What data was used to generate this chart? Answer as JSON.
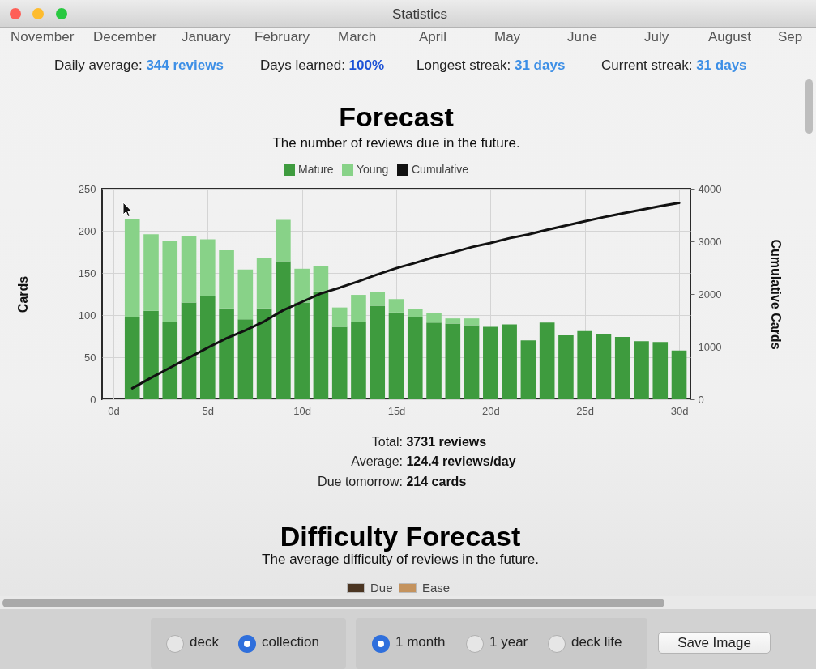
{
  "chart_data": {
    "type": "bar",
    "title": "Forecast",
    "subtitle": "The number of reviews due in the future.",
    "ylabel": "Cards",
    "y2label": "Cumulative Cards",
    "x": [
      1,
      2,
      3,
      4,
      5,
      6,
      7,
      8,
      9,
      10,
      11,
      12,
      13,
      14,
      15,
      16,
      17,
      18,
      19,
      20,
      21,
      22,
      23,
      24,
      25,
      26,
      27,
      28,
      29,
      30
    ],
    "series": [
      {
        "name": "Mature",
        "color": "#3e9b3e",
        "values": [
          98,
          105,
          92,
          115,
          122,
          108,
          95,
          108,
          164,
          115,
          128,
          86,
          92,
          111,
          103,
          98,
          91,
          90,
          88,
          86,
          89,
          70,
          91,
          76,
          81,
          77,
          74,
          69,
          68,
          58
        ]
      },
      {
        "name": "Young",
        "color": "#88d288",
        "values": [
          116,
          91,
          96,
          79,
          68,
          69,
          59,
          60,
          49,
          40,
          30,
          23,
          32,
          16,
          16,
          9,
          11,
          6,
          8,
          null,
          null,
          null,
          null,
          null,
          null,
          null,
          null,
          null,
          null,
          null
        ]
      },
      {
        "name": "Cumulative",
        "type": "line",
        "axis": "y2",
        "color": "#111111",
        "values": [
          210,
          410,
          600,
          790,
          980,
          1160,
          1310,
          1480,
          1690,
          1850,
          2010,
          2120,
          2240,
          2370,
          2490,
          2590,
          2700,
          2790,
          2890,
          2970,
          3060,
          3130,
          3220,
          3300,
          3380,
          3460,
          3530,
          3600,
          3670,
          3730
        ]
      }
    ],
    "stacked": true,
    "xlim": [
      -0.6,
      30.6
    ],
    "xticks": [
      {
        "value": 0,
        "label": "0d"
      },
      {
        "value": 5,
        "label": "5d"
      },
      {
        "value": 10,
        "label": "10d"
      },
      {
        "value": 15,
        "label": "15d"
      },
      {
        "value": 20,
        "label": "20d"
      },
      {
        "value": 25,
        "label": "25d"
      },
      {
        "value": 30,
        "label": "30d"
      }
    ],
    "ylim": [
      0,
      250
    ],
    "yticks": [
      0,
      50,
      100,
      150,
      200,
      250
    ],
    "y2lim": [
      0,
      4000
    ],
    "y2ticks": [
      0,
      1000,
      2000,
      3000,
      4000
    ],
    "grid": true,
    "legend": "top",
    "annotations": [
      "Statistics",
      "November",
      "December",
      "January",
      "February",
      "March",
      "April",
      "May",
      "June",
      "July",
      "August",
      "Sep",
      "Daily average: 344 reviews",
      "Days learned: 100%",
      "Longest streak: 31 days",
      "Current streak: 31 days",
      "Total: 3731 reviews",
      "Average: 124.4 reviews/day",
      "Due tomorrow: 214 cards",
      "Difficulty Forecast",
      "The average difficulty of reviews in the future.",
      "Due",
      "Ease",
      "deck",
      "collection",
      "1 month",
      "1 year",
      "deck life",
      "Save Image"
    ]
  }
}
